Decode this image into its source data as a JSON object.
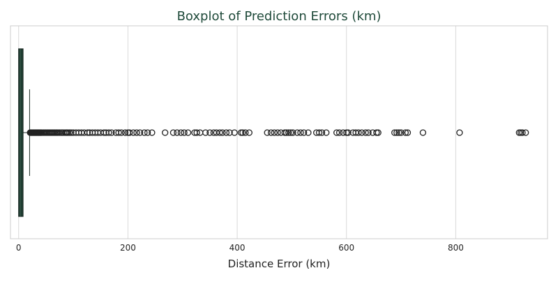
{
  "chart_data": {
    "type": "boxplot",
    "orientation": "horizontal",
    "title": "Boxplot of Prediction Errors (km)",
    "xlabel": "Distance Error (km)",
    "ylabel": "",
    "xlim": [
      -15,
      968
    ],
    "xticks": [
      0,
      200,
      400,
      600,
      800
    ],
    "grid": true,
    "colors": {
      "title": "#1f4a3a",
      "box_fill": "#1e3d31",
      "box_edge": "#1b2a24",
      "outlier_edge": "#222222",
      "grid": "#d9d9d9",
      "spine": "#cccccc",
      "text": "#222222"
    },
    "box": {
      "q1": 0,
      "median": 3,
      "q3": 8,
      "whisker_low": 0,
      "whisker_high": 20
    },
    "outliers": [
      21,
      22,
      23,
      24,
      25,
      26,
      27,
      28,
      29,
      30,
      31,
      32,
      33,
      34,
      35,
      36,
      37,
      38,
      39,
      40,
      41,
      42,
      44,
      46,
      48,
      50,
      52,
      54,
      56,
      58,
      60,
      62,
      64,
      66,
      68,
      70,
      72,
      75,
      78,
      80,
      83,
      86,
      88,
      90,
      93,
      96,
      100,
      105,
      110,
      115,
      120,
      126,
      130,
      135,
      140,
      145,
      150,
      156,
      160,
      165,
      170,
      178,
      183,
      188,
      195,
      200,
      203,
      210,
      216,
      222,
      230,
      236,
      244,
      268,
      283,
      290,
      297,
      303,
      310,
      322,
      326,
      332,
      342,
      350,
      357,
      362,
      368,
      373,
      380,
      386,
      395,
      407,
      410,
      415,
      422,
      455,
      462,
      468,
      474,
      480,
      487,
      490,
      494,
      498,
      502,
      510,
      516,
      522,
      530,
      545,
      550,
      555,
      563,
      582,
      587,
      594,
      600,
      603,
      612,
      617,
      622,
      628,
      635,
      640,
      648,
      655,
      658,
      688,
      692,
      696,
      700,
      708,
      712,
      740,
      807,
      916,
      919,
      922,
      928
    ]
  }
}
